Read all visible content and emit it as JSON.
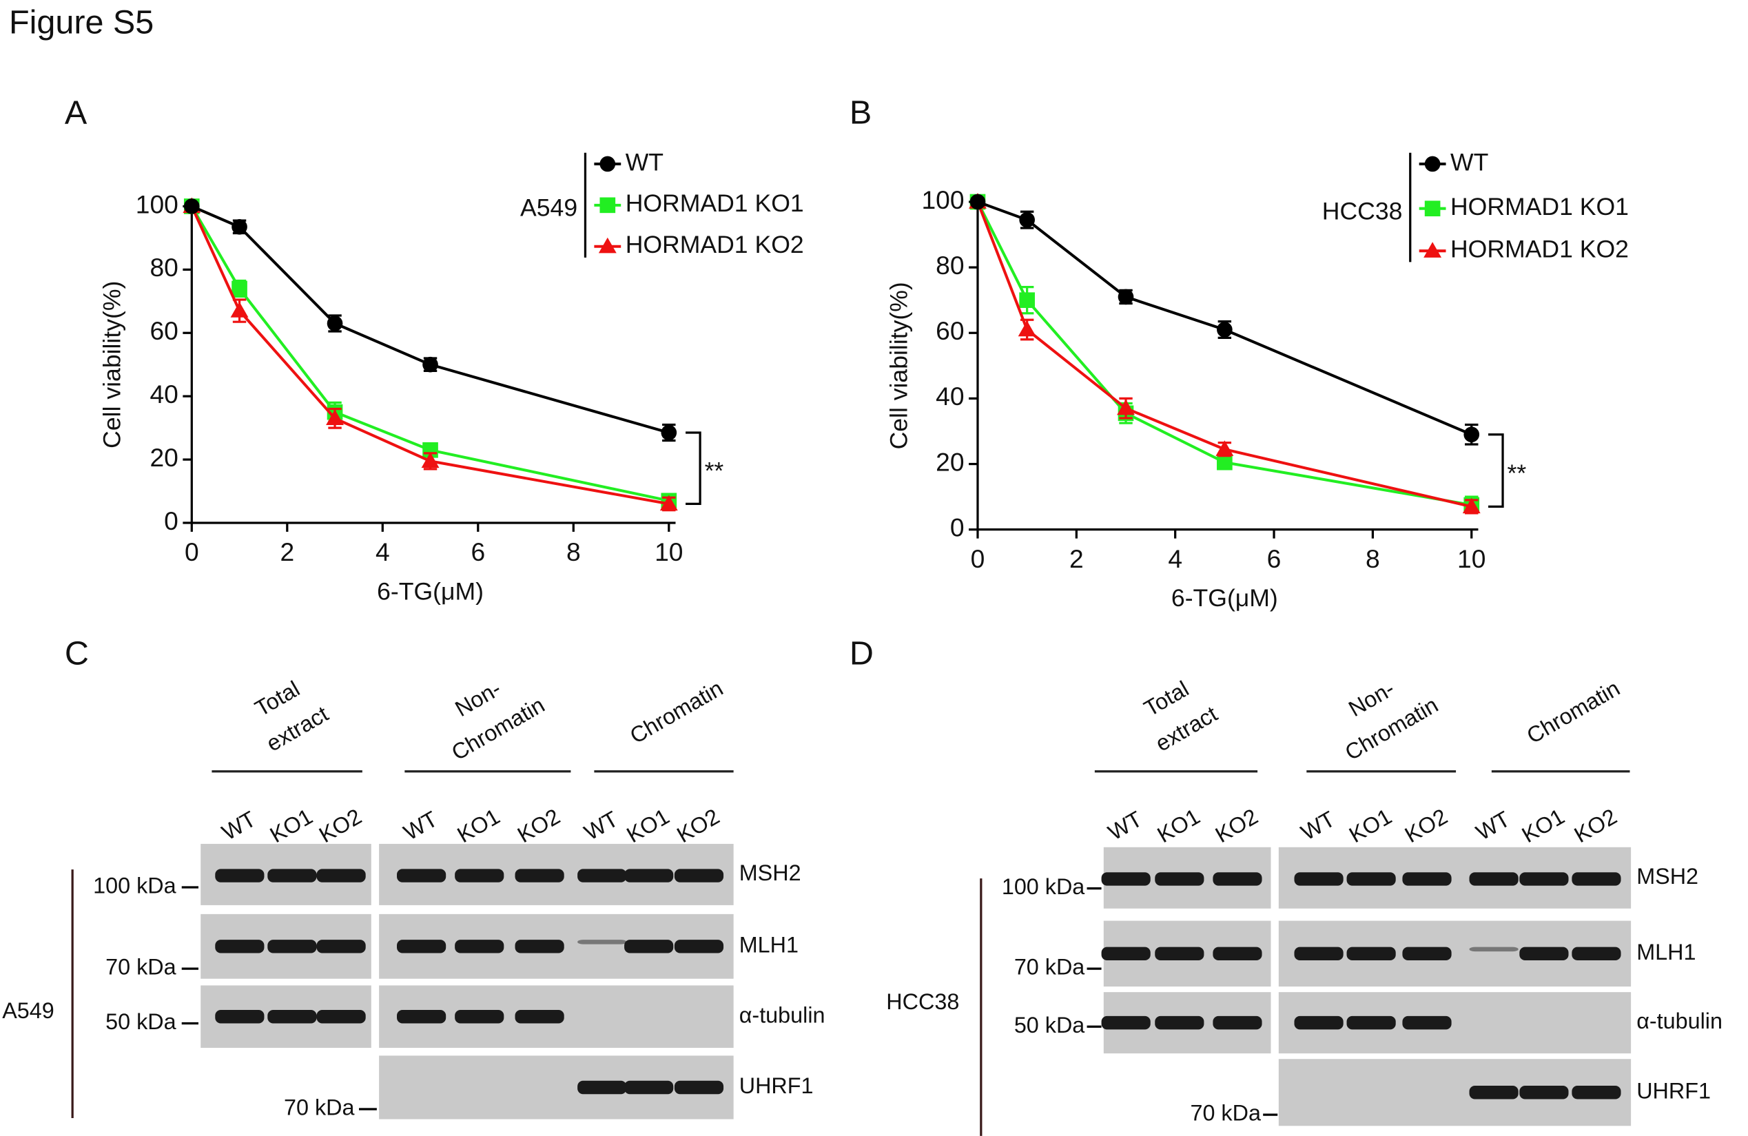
{
  "title": "Figure S5",
  "chart_data": [
    {
      "type": "line",
      "panel": "A",
      "cell_line": "A549",
      "xlabel": "6-TG(μM)",
      "ylabel": "Cell viability(%)",
      "annotation": "**",
      "x": [
        0,
        1,
        3,
        5,
        10
      ],
      "xlim": [
        0,
        10
      ],
      "ylim": [
        0,
        100
      ],
      "xticks": [
        0,
        2,
        4,
        6,
        8,
        10
      ],
      "yticks": [
        0,
        20,
        40,
        60,
        80,
        100
      ],
      "series": [
        {
          "name": "WT",
          "color": "#000000",
          "marker": "circle",
          "values": [
            100,
            93.5,
            63,
            50,
            28.5
          ],
          "errors": [
            1,
            2,
            2.5,
            2,
            2.5
          ]
        },
        {
          "name": "HORMAD1 KO1",
          "color": "#22ee22",
          "marker": "square",
          "values": [
            100,
            74,
            35,
            23,
            7
          ],
          "errors": [
            1,
            2.5,
            3,
            2,
            2
          ]
        },
        {
          "name": "HORMAD1 KO2",
          "color": "#ee1111",
          "marker": "triangle",
          "values": [
            100,
            67,
            33,
            19.5,
            6
          ],
          "errors": [
            1,
            3.5,
            3,
            2.5,
            2
          ]
        }
      ]
    },
    {
      "type": "line",
      "panel": "B",
      "cell_line": "HCC38",
      "xlabel": "6-TG(μM)",
      "ylabel": "Cell viability(%)",
      "annotation": "**",
      "x": [
        0,
        1,
        3,
        5,
        10
      ],
      "xlim": [
        0,
        10
      ],
      "ylim": [
        0,
        100
      ],
      "xticks": [
        0,
        2,
        4,
        6,
        8,
        10
      ],
      "yticks": [
        0,
        20,
        40,
        60,
        80,
        100
      ],
      "series": [
        {
          "name": "WT",
          "color": "#000000",
          "marker": "circle",
          "values": [
            100,
            94.5,
            71,
            61,
            29
          ],
          "errors": [
            1,
            2.5,
            2,
            2.5,
            3
          ]
        },
        {
          "name": "HORMAD1 KO1",
          "color": "#22ee22",
          "marker": "square",
          "values": [
            100,
            70,
            35.5,
            20.5,
            7.5
          ],
          "errors": [
            1,
            4,
            3,
            2,
            2.5
          ]
        },
        {
          "name": "HORMAD1 KO2",
          "color": "#ee1111",
          "marker": "triangle",
          "values": [
            100,
            61,
            37,
            24.5,
            7
          ],
          "errors": [
            1,
            3,
            3,
            2,
            2
          ]
        }
      ]
    }
  ],
  "blots": [
    {
      "panel": "C",
      "cell_line": "A549",
      "groups": [
        {
          "label": [
            "Total",
            "extract"
          ],
          "lanes": [
            "WT",
            "KO1",
            "KO2"
          ]
        },
        {
          "label": [
            "Non-",
            "Chromatin"
          ],
          "lanes": [
            "WT",
            "KO1",
            "KO2"
          ]
        },
        {
          "label": [
            "Chromatin"
          ],
          "lanes": [
            "WT",
            "KO1",
            "KO2"
          ]
        }
      ],
      "proteins": [
        {
          "name": "MSH2",
          "marker": "100 kDa"
        },
        {
          "name": "MLH1",
          "marker": "70 kDa"
        },
        {
          "name": "α-tubulin",
          "marker": "50 kDa"
        },
        {
          "name": "UHRF1",
          "marker": "70 kDa"
        }
      ]
    },
    {
      "panel": "D",
      "cell_line": "HCC38",
      "groups": [
        {
          "label": [
            "Total",
            "extract"
          ],
          "lanes": [
            "WT",
            "KO1",
            "KO2"
          ]
        },
        {
          "label": [
            "Non-",
            "Chromatin"
          ],
          "lanes": [
            "WT",
            "KO1",
            "KO2"
          ]
        },
        {
          "label": [
            "Chromatin"
          ],
          "lanes": [
            "WT",
            "KO1",
            "KO2"
          ]
        }
      ],
      "proteins": [
        {
          "name": "MSH2",
          "marker": "100 kDa"
        },
        {
          "name": "MLH1",
          "marker": "70 kDa"
        },
        {
          "name": "α-tubulin",
          "marker": "50 kDa"
        },
        {
          "name": "UHRF1",
          "marker": "70 kDa"
        }
      ]
    }
  ]
}
